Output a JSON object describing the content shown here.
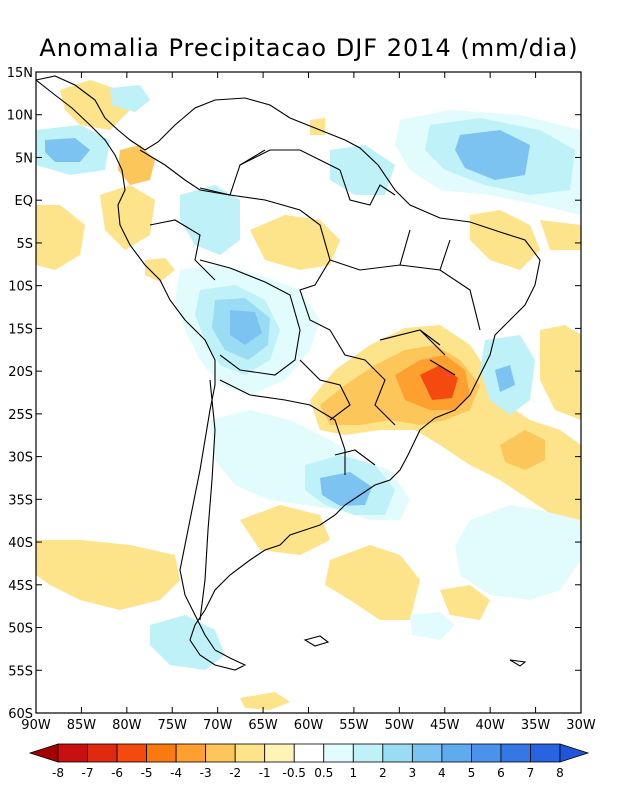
{
  "title": "Anomalia Precipitacao DJF 2014 (mm/dia)",
  "lat_labels": [
    "15N",
    "10N",
    "5N",
    "EQ",
    "5S",
    "10S",
    "15S",
    "20S",
    "25S",
    "30S",
    "35S",
    "40S",
    "45S",
    "50S",
    "55S",
    "60S"
  ],
  "lon_labels": [
    "90W",
    "85W",
    "80W",
    "75W",
    "70W",
    "65W",
    "60W",
    "55W",
    "50W",
    "45W",
    "40W",
    "35W",
    "30W"
  ],
  "colorbar": {
    "labels": [
      "-8",
      "-7",
      "-6",
      "-5",
      "-4",
      "-3",
      "-2",
      "-1",
      "-0.5",
      "0.5",
      "1",
      "2",
      "3",
      "4",
      "5",
      "6",
      "7",
      "8"
    ],
    "colors": [
      "#a50000",
      "#c81010",
      "#e02a10",
      "#f44a10",
      "#fb7a10",
      "#fda030",
      "#fdc65a",
      "#fde38a",
      "#fff4b8",
      "#ffffff",
      "#e2fbfd",
      "#bff1f8",
      "#9bdcf5",
      "#7cc3f2",
      "#5eabee",
      "#4a92ea",
      "#3677e6",
      "#2864e0",
      "#1f55d8"
    ]
  }
}
